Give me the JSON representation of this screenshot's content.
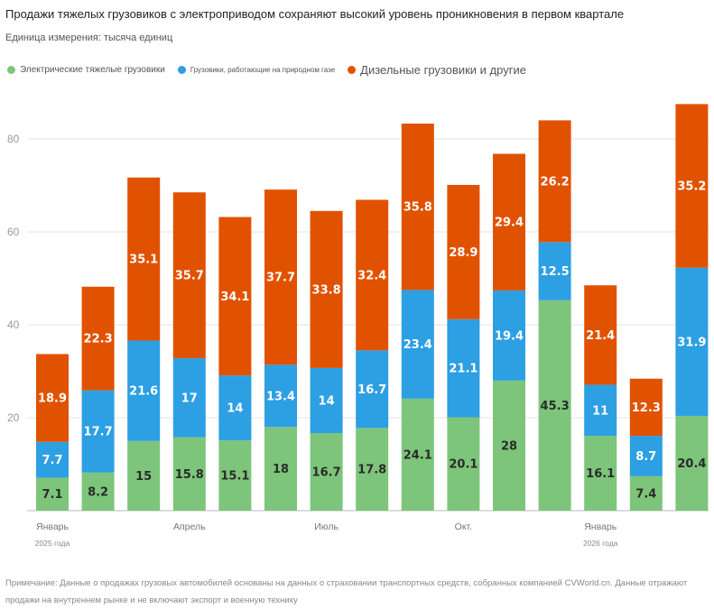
{
  "title": "Продажи тяжелых грузовиков с электроприводом сохраняют высокий уровень проникновения в первом квартале",
  "subtitle": "Единица измерения: тысяча единиц",
  "note": "Примечание: Данные о продажах грузовых автомобилей основаны на данных о страховании транспортных средств, собранных компанией CVWorld.cn. Данные отражают продажи на внутреннем рынке и не включают экспорт и военную технику",
  "chart_data": {
    "type": "bar",
    "stacked": true,
    "title": "Продажи тяжелых грузовиков с электроприводом сохраняют высокий уровень проникновения в первом квартале",
    "ylabel": "Единица измерения: тысяча единиц",
    "ylim": [
      0,
      90
    ],
    "yticks": [
      20,
      40,
      60,
      80
    ],
    "grid": true,
    "legend_position": "top-left",
    "categories": [
      "2025-01",
      "2025-02",
      "2025-03",
      "2025-04",
      "2025-05",
      "2025-06",
      "2025-07",
      "2025-08",
      "2025-09",
      "2025-10",
      "2025-11",
      "2025-12",
      "2026-01",
      "2026-02",
      "2026-03"
    ],
    "x_tick_labels": [
      {
        "index": 0,
        "label": "Январь",
        "sublabel": "2025 года"
      },
      {
        "index": 3,
        "label": "Апрель",
        "sublabel": ""
      },
      {
        "index": 6,
        "label": "Июль",
        "sublabel": ""
      },
      {
        "index": 9,
        "label": "Окт.",
        "sublabel": ""
      },
      {
        "index": 12,
        "label": "Январь",
        "sublabel": "2026 года"
      }
    ],
    "series": [
      {
        "name": "Электрические тяжелые грузовики",
        "color": "#7dc57a",
        "values": [
          7.1,
          8.2,
          15,
          15.8,
          15.1,
          18,
          16.7,
          17.8,
          24.1,
          20.1,
          28,
          45.3,
          16.1,
          7.4,
          20.4
        ]
      },
      {
        "name": "Грузовики, работающие на природном газе",
        "color": "#2d9fe3",
        "values": [
          7.7,
          17.7,
          21.6,
          17,
          14,
          13.4,
          14,
          16.7,
          23.4,
          21.1,
          19.4,
          12.5,
          11,
          8.7,
          31.9
        ]
      },
      {
        "name": "Дизельные грузовики и другие",
        "color": "#e15200",
        "values": [
          18.9,
          22.3,
          35.1,
          35.7,
          34.1,
          37.7,
          33.8,
          32.4,
          35.8,
          28.9,
          29.4,
          26.2,
          21.4,
          12.3,
          35.2
        ]
      }
    ]
  }
}
